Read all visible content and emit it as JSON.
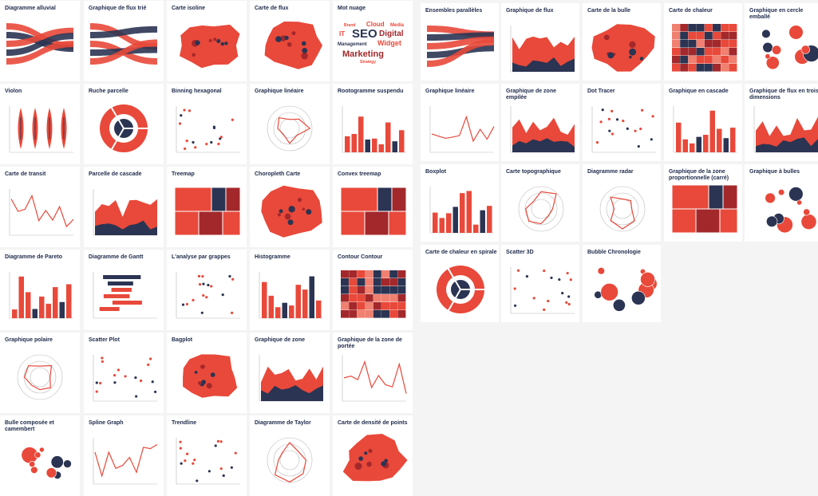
{
  "left_cards": [
    "Diagramme alluvial",
    "Graphique de flux trié",
    "Carte isoline",
    "Carte de flux",
    "Mot nuage",
    "Violon",
    "Ruche parcelle",
    "Binning hexagonal",
    "Graphique linéaire",
    "Rootogramme suspendu",
    "Carte de transit",
    "Parcelle de cascade",
    "Treemap",
    "Choropleth Carte",
    "Convex treemap",
    "Diagramme de Pareto",
    "Diagramme de Gantt",
    "L'analyse par grappes",
    "Histogramme",
    "Contour Contour",
    "Graphique polaire",
    "Scatter Plot",
    "Bagplot",
    "Graphique de zone",
    "Graphique de la zone de portée",
    "Bulle composée et camembert",
    "Spline Graph",
    "Trendline",
    "Diagramme de Taylor",
    "Carte de densité de points"
  ],
  "right_cards": [
    "Ensembles parallèles",
    "Graphique de flux",
    "Carte de la bulle",
    "Carte de chaleur",
    "Graphique en cercle emballé",
    "Graphique linéaire",
    "Graphique de zone empilée",
    "Dot Tracer",
    "Graphique en cascade",
    "Graphique de flux en trois dimensions",
    "Boxplot",
    "Carte topographique",
    "Diagramme radar",
    "Graphique de la zone proportionnelle (carré)",
    "Graphique à bulles",
    "Carte de chaleur en spirale",
    "Scatter 3D",
    "Bubble Chronologie"
  ],
  "word_cloud": [
    "Brand",
    "Cloud",
    "Media",
    "IT",
    "SEO",
    "Digital",
    "Management",
    "Widget",
    "Marketing",
    "Strategy"
  ]
}
